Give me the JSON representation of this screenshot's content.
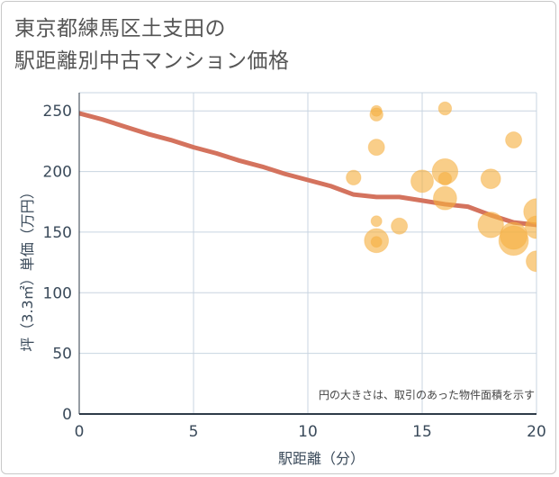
{
  "title_line1": "東京都練馬区土支田の",
  "title_line2": "駅距離別中古マンション価格",
  "chart_data": {
    "type": "scatter",
    "title": "東京都練馬区土支田の駅距離別中古マンション価格",
    "xlabel": "駅距離（分）",
    "ylabel": "坪（3.3㎡）単価（万円）",
    "xlim": [
      0,
      20
    ],
    "ylim": [
      0,
      265
    ],
    "xticks": [
      "0",
      "5",
      "10",
      "15",
      "20"
    ],
    "yticks": [
      "0",
      "50",
      "100",
      "150",
      "200",
      "250"
    ],
    "grid": true,
    "annotation": "円の大きさは、取引のあった物件面積を示す",
    "colors": {
      "bubble": "#f5b041",
      "line": "#d4735e",
      "grid": "#c8d4e0"
    },
    "trend": {
      "x": [
        0,
        1,
        2,
        3,
        4,
        5,
        6,
        7,
        8,
        9,
        10,
        11,
        12,
        13,
        14,
        15,
        16,
        17,
        18,
        19,
        20
      ],
      "y": [
        248,
        243,
        237,
        231,
        226,
        220,
        215,
        209,
        204,
        198,
        193,
        188,
        181,
        179,
        179,
        176,
        173,
        171,
        164,
        158,
        156
      ]
    },
    "points": [
      {
        "x": 12,
        "y": 195,
        "size": 3
      },
      {
        "x": 13,
        "y": 250,
        "size": 1
      },
      {
        "x": 13,
        "y": 247,
        "size": 2
      },
      {
        "x": 13,
        "y": 220,
        "size": 4
      },
      {
        "x": 13,
        "y": 159,
        "size": 1
      },
      {
        "x": 13,
        "y": 143,
        "size": 12
      },
      {
        "x": 13,
        "y": 142,
        "size": 1
      },
      {
        "x": 14,
        "y": 155,
        "size": 4
      },
      {
        "x": 15,
        "y": 192,
        "size": 10
      },
      {
        "x": 16,
        "y": 252,
        "size": 2
      },
      {
        "x": 16,
        "y": 200,
        "size": 14
      },
      {
        "x": 16,
        "y": 194,
        "size": 2
      },
      {
        "x": 16,
        "y": 178,
        "size": 11
      },
      {
        "x": 18,
        "y": 194,
        "size": 7
      },
      {
        "x": 18,
        "y": 156,
        "size": 14
      },
      {
        "x": 19,
        "y": 226,
        "size": 4
      },
      {
        "x": 19,
        "y": 147,
        "size": 16
      },
      {
        "x": 19,
        "y": 143,
        "size": 20
      },
      {
        "x": 20,
        "y": 167,
        "size": 14
      },
      {
        "x": 20,
        "y": 154,
        "size": 10
      },
      {
        "x": 20,
        "y": 126,
        "size": 8
      }
    ]
  }
}
